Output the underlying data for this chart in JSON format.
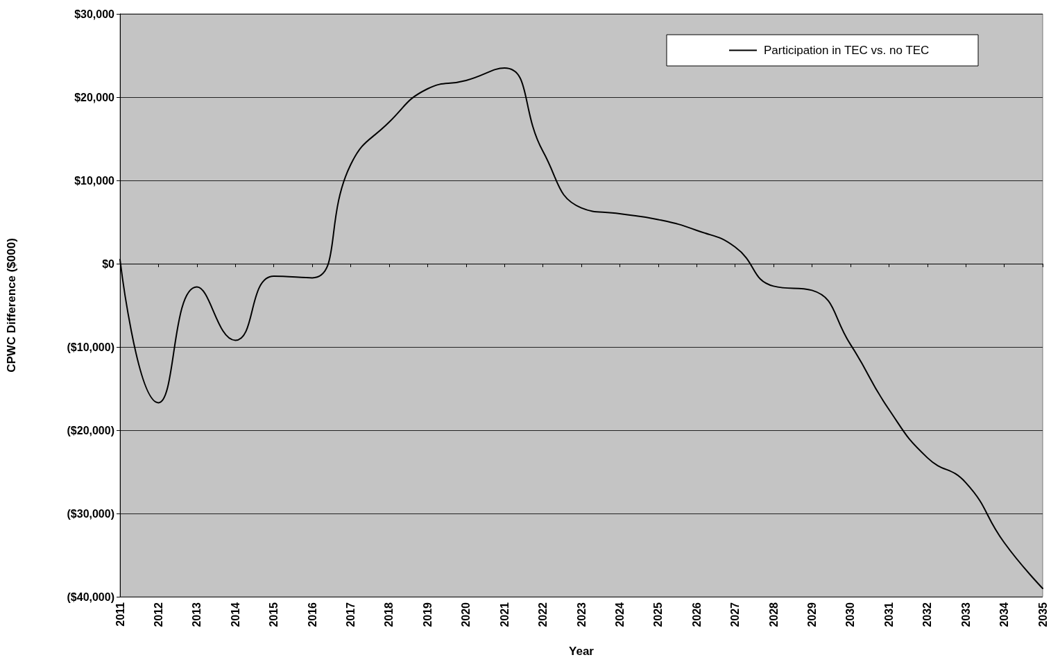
{
  "chart_data": {
    "type": "line",
    "xlabel": "Year",
    "ylabel": "CPWC Difference ($000)",
    "categories": [
      "2011",
      "2012",
      "2013",
      "2014",
      "2015",
      "2016",
      "2017",
      "2018",
      "2019",
      "2020",
      "2021",
      "2022",
      "2023",
      "2024",
      "2025",
      "2026",
      "2027",
      "2028",
      "2029",
      "2030",
      "2031",
      "2032",
      "2033",
      "2034",
      "2035"
    ],
    "series": [
      {
        "name": "Participation in TEC vs. no TEC",
        "color": "#000000",
        "values": [
          500,
          -16700,
          -2800,
          -9200,
          -1500,
          -1700,
          11900,
          17000,
          21000,
          22000,
          23500,
          13500,
          6700,
          6000,
          5300,
          4000,
          2000,
          -2700,
          -3200,
          -9700,
          -17500,
          -23300,
          -26300,
          -33500,
          -39000
        ]
      }
    ],
    "ylim": [
      -40000,
      30000
    ],
    "yticks": [
      {
        "value": -40000,
        "label": "($40,000)"
      },
      {
        "value": -30000,
        "label": "($30,000)"
      },
      {
        "value": -20000,
        "label": "($20,000)"
      },
      {
        "value": -10000,
        "label": "($10,000)"
      },
      {
        "value": 0,
        "label": "$0"
      },
      {
        "value": 10000,
        "label": "$10,000"
      },
      {
        "value": 20000,
        "label": "$20,000"
      },
      {
        "value": 30000,
        "label": "$30,000"
      }
    ],
    "grid": "y",
    "legend": "top right",
    "marker": "none",
    "line_style": "solid"
  }
}
